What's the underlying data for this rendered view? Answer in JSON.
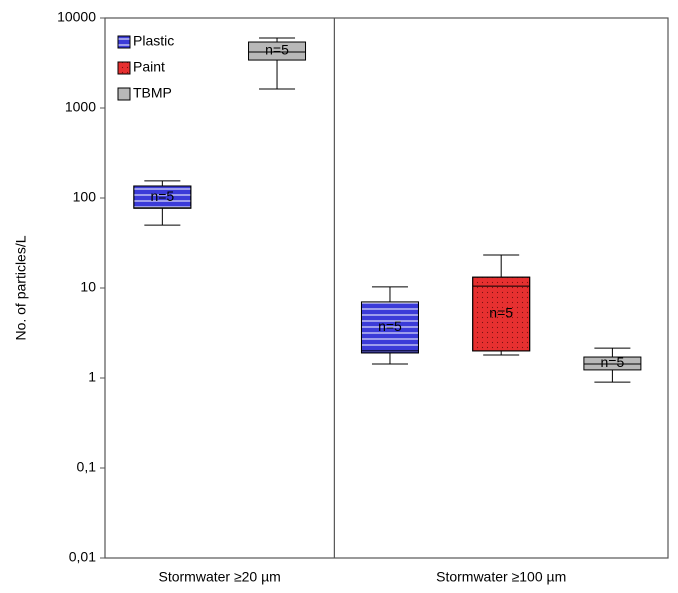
{
  "chart_data": {
    "type": "box",
    "y_label": "No. of particles/L",
    "log_scale": true,
    "categories": [
      "Stormwater ≥20 µm",
      "Stormwater ≥100 µm"
    ],
    "ylim": [
      0.01,
      10000
    ],
    "yticks": [
      {
        "value": 0.01,
        "label": "0,01"
      },
      {
        "value": 0.1,
        "label": "0,1"
      },
      1,
      10,
      100,
      1000,
      10000
    ],
    "legend": "upper left",
    "series": [
      {
        "name": "Plastic",
        "color": "#3b3bd8",
        "pattern": "lines",
        "stats": [
          {
            "min": 50,
            "q1": 77,
            "median": 78,
            "q3": 136,
            "max": 155,
            "label": "n=5"
          },
          {
            "min": 1.43,
            "q1": 1.9,
            "median": 2.0,
            "q3": 7.0,
            "max": 10.3,
            "label": "n=5"
          }
        ]
      },
      {
        "name": "Paint",
        "color": "#e63030",
        "pattern": "dots",
        "stats": [
          null,
          {
            "min": 1.8,
            "q1": 2.0,
            "median": 10.5,
            "q3": 13.2,
            "max": 23.3,
            "label": "n=5"
          }
        ]
      },
      {
        "name": "TBMP",
        "color": "#b8b8b8",
        "pattern": "none",
        "stats": [
          {
            "min": 1626,
            "q1": 3410,
            "median": 4190,
            "q3": 5410,
            "max": 6000,
            "label": "n=5"
          },
          {
            "min": 0.9,
            "q1": 1.23,
            "median": 1.43,
            "q3": 1.71,
            "max": 2.15,
            "label": "n=5"
          }
        ]
      }
    ]
  }
}
